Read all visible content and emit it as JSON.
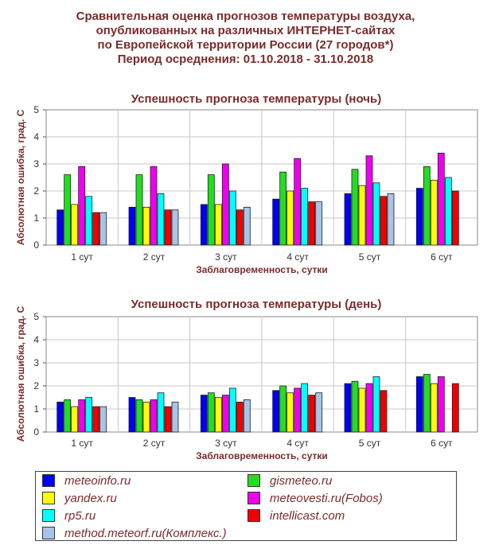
{
  "header": {
    "line1": "Сравнительная оценка прогнозов температуры воздуха,",
    "line2": "опубликованных на различных ИНТЕРНЕТ-сайтах",
    "line3": "по Европейской территории России (27 городов*)",
    "line4": "Период осреднения: 01.10.2018 - 31.10.2018"
  },
  "series_styles": [
    {
      "name": "meteoinfo.ru",
      "color": "#0000ee"
    },
    {
      "name": "gismeteo.ru",
      "color": "#22dd22"
    },
    {
      "name": "yandex.ru",
      "color": "#ffff00"
    },
    {
      "name": "meteovesti.ru(Fobos)",
      "color": "#ee00ee"
    },
    {
      "name": "rp5.ru",
      "color": "#00ffff"
    },
    {
      "name": "intellicast.com",
      "color": "#ee0000"
    },
    {
      "name": "method.meteorf.ru(Комплекс.)",
      "color": "#a8c4e8"
    }
  ],
  "chart_data": [
    {
      "type": "bar",
      "title": "Успешность прогноза температуры (ночь)",
      "xlabel": "Заблаговременность, сутки",
      "ylabel": "Абсолютная ошибка, град. С",
      "ylim": [
        0,
        5
      ],
      "yticks": [
        "0",
        "1",
        "2",
        "3",
        "4",
        "5"
      ],
      "categories": [
        "1 сут",
        "2 сут",
        "3 сут",
        "4 сут",
        "5 сут",
        "6 сут"
      ],
      "series": [
        {
          "name": "meteoinfo.ru",
          "values": [
            1.3,
            1.4,
            1.5,
            1.7,
            1.9,
            2.1
          ]
        },
        {
          "name": "gismeteo.ru",
          "values": [
            2.6,
            2.6,
            2.6,
            2.7,
            2.8,
            2.9
          ]
        },
        {
          "name": "yandex.ru",
          "values": [
            1.5,
            1.4,
            1.5,
            2.0,
            2.2,
            2.4
          ]
        },
        {
          "name": "meteovesti.ru(Fobos)",
          "values": [
            2.9,
            2.9,
            3.0,
            3.2,
            3.3,
            3.4
          ]
        },
        {
          "name": "rp5.ru",
          "values": [
            1.8,
            1.9,
            2.0,
            2.1,
            2.3,
            2.5
          ]
        },
        {
          "name": "intellicast.com",
          "values": [
            1.2,
            1.3,
            1.3,
            1.6,
            1.8,
            2.0
          ]
        },
        {
          "name": "method.meteorf.ru(Комплекс.)",
          "values": [
            1.2,
            1.3,
            1.4,
            1.6,
            1.9,
            null
          ]
        }
      ]
    },
    {
      "type": "bar",
      "title": "Успешность прогноза температуры (день)",
      "xlabel": "Заблаговременность, сутки",
      "ylabel": "Абсолютная ошибка, град. С",
      "ylim": [
        0,
        5
      ],
      "yticks": [
        "0",
        "1",
        "2",
        "3",
        "4",
        "5"
      ],
      "categories": [
        "1 сут",
        "2 сут",
        "3 сут",
        "4 сут",
        "5 сут",
        "6 сут"
      ],
      "series": [
        {
          "name": "meteoinfo.ru",
          "values": [
            1.3,
            1.5,
            1.6,
            1.8,
            2.1,
            2.4
          ]
        },
        {
          "name": "gismeteo.ru",
          "values": [
            1.4,
            1.4,
            1.7,
            2.0,
            2.2,
            2.5
          ]
        },
        {
          "name": "yandex.ru",
          "values": [
            1.1,
            1.3,
            1.5,
            1.7,
            1.9,
            2.1
          ]
        },
        {
          "name": "meteovesti.ru(Fobos)",
          "values": [
            1.4,
            1.4,
            1.6,
            1.9,
            2.1,
            2.4
          ]
        },
        {
          "name": "rp5.ru",
          "values": [
            1.5,
            1.7,
            1.9,
            2.1,
            2.4,
            null
          ]
        },
        {
          "name": "intellicast.com",
          "values": [
            1.1,
            1.1,
            1.3,
            1.6,
            1.8,
            2.1
          ]
        },
        {
          "name": "method.meteorf.ru(Комплекс.)",
          "values": [
            1.1,
            1.3,
            1.4,
            1.7,
            null,
            null
          ]
        }
      ]
    }
  ],
  "legend": {
    "items": [
      "meteoinfo.ru",
      "gismeteo.ru",
      "yandex.ru",
      "meteovesti.ru(Fobos)",
      "rp5.ru",
      "intellicast.com",
      "method.meteorf.ru(Комплекс.)"
    ]
  }
}
